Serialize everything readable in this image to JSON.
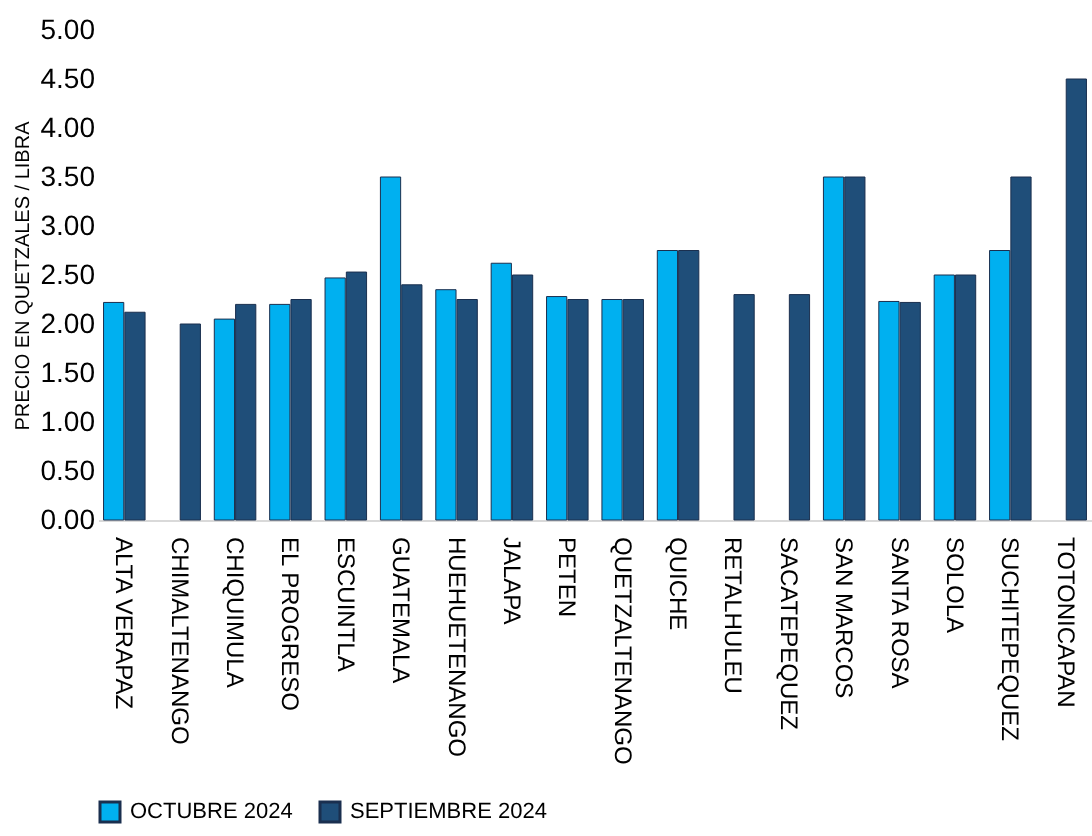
{
  "chart_data": {
    "type": "bar",
    "ylabel": "PRECIO EN QUETZALES / LIBRA",
    "categories": [
      "ALTA VERAPAZ",
      "CHIMALTENANGO",
      "CHIQUIMULA",
      "EL PROGRESO",
      "ESCUINTLA",
      "GUATEMALA",
      "HUEHUETENANGO",
      "JALAPA",
      "PETEN",
      "QUETZALTENANGO",
      "QUICHE",
      "RETALHULEU",
      "SACATEPEQUEZ",
      "SAN MARCOS",
      "SANTA ROSA",
      "SOLOLA",
      "SUCHITEPEQUEZ",
      "TOTONICAPAN"
    ],
    "series": [
      {
        "name": "OCTUBRE 2024",
        "color": "#00b0f0",
        "values": [
          2.22,
          null,
          2.05,
          2.2,
          2.47,
          3.5,
          2.35,
          2.62,
          2.28,
          2.25,
          2.75,
          null,
          null,
          3.5,
          2.23,
          2.5,
          2.75,
          null
        ]
      },
      {
        "name": "SEPTIEMBRE 2024",
        "color": "#1f4e79",
        "values": [
          2.12,
          2.0,
          2.2,
          2.25,
          2.53,
          2.4,
          2.25,
          2.5,
          2.25,
          2.25,
          2.75,
          2.3,
          2.3,
          3.5,
          2.22,
          2.5,
          3.5,
          4.5
        ]
      }
    ],
    "ylim": [
      0,
      5
    ],
    "yticks": [
      {
        "value": 0,
        "label": "0.00"
      },
      {
        "value": 0.5,
        "label": "0.50"
      },
      {
        "value": 1,
        "label": "1.00"
      },
      {
        "value": 1.5,
        "label": "1.50"
      },
      {
        "value": 2,
        "label": "2.00"
      },
      {
        "value": 2.5,
        "label": "2.50"
      },
      {
        "value": 3,
        "label": "3.00"
      },
      {
        "value": 3.5,
        "label": "3.50"
      },
      {
        "value": 4,
        "label": "4.00"
      },
      {
        "value": 4.5,
        "label": "4.50"
      },
      {
        "value": 5,
        "label": "5.00"
      }
    ],
    "grid": false,
    "legend": "bottom"
  }
}
